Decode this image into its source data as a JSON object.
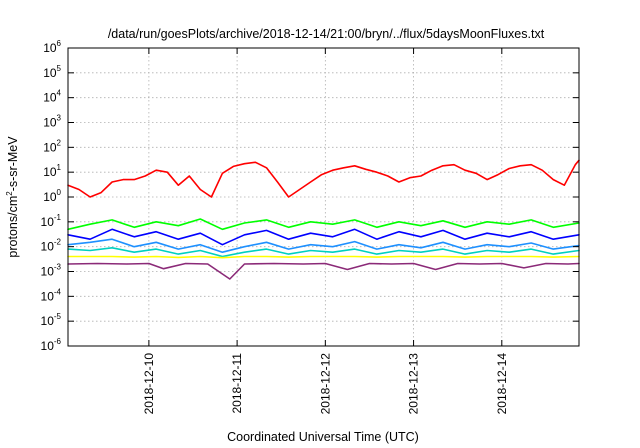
{
  "chart_data": {
    "type": "line",
    "title": "/data/run/goesPlots/archive/2018-12-14/21:00/bryn/../flux/5daysMoonFluxes.txt",
    "xlabel": "Coordinated Universal Time (UTC)",
    "ylabel": "protons/cm2-s-sr-MeV",
    "ylabel_parts": {
      "before": "protons/cm",
      "sup": "2",
      "after": "-s-sr-MeV"
    },
    "yscale": "log",
    "ylim": [
      1e-06,
      1000000.0
    ],
    "y_ticks": [
      {
        "base": "10",
        "exp": "-6",
        "value": 1e-06
      },
      {
        "base": "10",
        "exp": "-5",
        "value": 1e-05
      },
      {
        "base": "10",
        "exp": "-4",
        "value": 0.0001
      },
      {
        "base": "10",
        "exp": "-3",
        "value": 0.001
      },
      {
        "base": "10",
        "exp": "-2",
        "value": 0.01
      },
      {
        "base": "10",
        "exp": "-1",
        "value": 0.1
      },
      {
        "base": "10",
        "exp": "0",
        "value": 1
      },
      {
        "base": "10",
        "exp": "1",
        "value": 10
      },
      {
        "base": "10",
        "exp": "2",
        "value": 100
      },
      {
        "base": "10",
        "exp": "3",
        "value": 1000
      },
      {
        "base": "10",
        "exp": "4",
        "value": 10000
      },
      {
        "base": "10",
        "exp": "5",
        "value": 100000
      },
      {
        "base": "10",
        "exp": "6",
        "value": 1000000
      }
    ],
    "xlim": [
      "2018-12-09 02:00",
      "2018-12-14 21:00"
    ],
    "x_ticks": [
      "2018-12-10",
      "2018-12-11",
      "2018-12-12",
      "2018-12-13",
      "2018-12-14"
    ],
    "grid": true,
    "legend": "none",
    "series": [
      {
        "color": "#ff0000",
        "x": [
          "2018-12-09 02:00",
          "2018-12-09 05:00",
          "2018-12-09 08:00",
          "2018-12-09 11:00",
          "2018-12-09 14:00",
          "2018-12-09 17:00",
          "2018-12-09 20:00",
          "2018-12-09 23:00",
          "2018-12-10 02:00",
          "2018-12-10 05:00",
          "2018-12-10 08:00",
          "2018-12-10 11:00",
          "2018-12-10 14:00",
          "2018-12-10 17:00",
          "2018-12-10 20:00",
          "2018-12-10 23:00",
          "2018-12-11 02:00",
          "2018-12-11 05:00",
          "2018-12-11 08:00",
          "2018-12-11 11:00",
          "2018-12-11 14:00",
          "2018-12-11 17:00",
          "2018-12-11 20:00",
          "2018-12-11 23:00",
          "2018-12-12 02:00",
          "2018-12-12 05:00",
          "2018-12-12 08:00",
          "2018-12-12 11:00",
          "2018-12-12 14:00",
          "2018-12-12 17:00",
          "2018-12-12 20:00",
          "2018-12-12 23:00",
          "2018-12-13 02:00",
          "2018-12-13 05:00",
          "2018-12-13 08:00",
          "2018-12-13 11:00",
          "2018-12-13 14:00",
          "2018-12-13 17:00",
          "2018-12-13 20:00",
          "2018-12-13 23:00",
          "2018-12-14 02:00",
          "2018-12-14 05:00",
          "2018-12-14 08:00",
          "2018-12-14 11:00",
          "2018-12-14 14:00",
          "2018-12-14 17:00",
          "2018-12-14 20:00",
          "2018-12-14 21:00"
        ],
        "y": [
          3,
          2,
          1,
          1.5,
          4,
          5,
          5,
          7,
          12,
          10,
          3,
          7,
          2,
          1,
          9,
          17,
          22,
          25,
          15,
          4,
          1,
          2,
          4,
          8,
          12,
          15,
          18,
          13,
          10,
          7,
          4,
          6,
          7,
          12,
          18,
          20,
          12,
          9,
          5,
          8,
          14,
          18,
          20,
          12,
          5,
          3,
          20,
          30
        ]
      },
      {
        "color": "#00ff00",
        "x": [
          "2018-12-09 02:00",
          "2018-12-09 08:00",
          "2018-12-09 14:00",
          "2018-12-09 20:00",
          "2018-12-10 02:00",
          "2018-12-10 08:00",
          "2018-12-10 14:00",
          "2018-12-10 20:00",
          "2018-12-11 02:00",
          "2018-12-11 08:00",
          "2018-12-11 14:00",
          "2018-12-11 20:00",
          "2018-12-12 02:00",
          "2018-12-12 08:00",
          "2018-12-12 14:00",
          "2018-12-12 20:00",
          "2018-12-13 02:00",
          "2018-12-13 08:00",
          "2018-12-13 14:00",
          "2018-12-13 20:00",
          "2018-12-14 02:00",
          "2018-12-14 08:00",
          "2018-12-14 14:00",
          "2018-12-14 21:00"
        ],
        "y": [
          0.05,
          0.08,
          0.12,
          0.06,
          0.1,
          0.07,
          0.13,
          0.05,
          0.09,
          0.12,
          0.06,
          0.1,
          0.08,
          0.12,
          0.06,
          0.1,
          0.07,
          0.11,
          0.06,
          0.1,
          0.08,
          0.12,
          0.06,
          0.09
        ]
      },
      {
        "color": "#0000ff",
        "x": [
          "2018-12-09 02:00",
          "2018-12-09 08:00",
          "2018-12-09 14:00",
          "2018-12-09 20:00",
          "2018-12-10 02:00",
          "2018-12-10 08:00",
          "2018-12-10 14:00",
          "2018-12-10 20:00",
          "2018-12-11 02:00",
          "2018-12-11 08:00",
          "2018-12-11 14:00",
          "2018-12-11 20:00",
          "2018-12-12 02:00",
          "2018-12-12 08:00",
          "2018-12-12 14:00",
          "2018-12-12 20:00",
          "2018-12-13 02:00",
          "2018-12-13 08:00",
          "2018-12-13 14:00",
          "2018-12-13 20:00",
          "2018-12-14 02:00",
          "2018-12-14 08:00",
          "2018-12-14 14:00",
          "2018-12-14 21:00"
        ],
        "y": [
          0.03,
          0.02,
          0.05,
          0.025,
          0.04,
          0.02,
          0.035,
          0.012,
          0.03,
          0.045,
          0.02,
          0.035,
          0.025,
          0.05,
          0.02,
          0.04,
          0.025,
          0.045,
          0.02,
          0.035,
          0.025,
          0.04,
          0.02,
          0.03
        ]
      },
      {
        "color": "#1e90ff",
        "x": [
          "2018-12-09 02:00",
          "2018-12-09 08:00",
          "2018-12-09 14:00",
          "2018-12-09 20:00",
          "2018-12-10 02:00",
          "2018-12-10 08:00",
          "2018-12-10 14:00",
          "2018-12-10 20:00",
          "2018-12-11 02:00",
          "2018-12-11 08:00",
          "2018-12-11 14:00",
          "2018-12-11 20:00",
          "2018-12-12 02:00",
          "2018-12-12 08:00",
          "2018-12-12 14:00",
          "2018-12-12 20:00",
          "2018-12-13 02:00",
          "2018-12-13 08:00",
          "2018-12-13 14:00",
          "2018-12-13 20:00",
          "2018-12-14 02:00",
          "2018-12-14 08:00",
          "2018-12-14 14:00",
          "2018-12-14 21:00"
        ],
        "y": [
          0.012,
          0.015,
          0.02,
          0.01,
          0.015,
          0.008,
          0.012,
          0.006,
          0.01,
          0.015,
          0.008,
          0.012,
          0.01,
          0.016,
          0.008,
          0.012,
          0.009,
          0.015,
          0.008,
          0.012,
          0.01,
          0.014,
          0.008,
          0.011
        ]
      },
      {
        "color": "#00d0c0",
        "x": [
          "2018-12-09 02:00",
          "2018-12-09 08:00",
          "2018-12-09 14:00",
          "2018-12-09 20:00",
          "2018-12-10 02:00",
          "2018-12-10 08:00",
          "2018-12-10 14:00",
          "2018-12-10 20:00",
          "2018-12-11 02:00",
          "2018-12-11 08:00",
          "2018-12-11 14:00",
          "2018-12-11 20:00",
          "2018-12-12 02:00",
          "2018-12-12 08:00",
          "2018-12-12 14:00",
          "2018-12-12 20:00",
          "2018-12-13 02:00",
          "2018-12-13 08:00",
          "2018-12-13 14:00",
          "2018-12-13 20:00",
          "2018-12-14 02:00",
          "2018-12-14 08:00",
          "2018-12-14 14:00",
          "2018-12-14 21:00"
        ],
        "y": [
          0.008,
          0.007,
          0.009,
          0.006,
          0.008,
          0.005,
          0.007,
          0.004,
          0.006,
          0.008,
          0.005,
          0.007,
          0.006,
          0.008,
          0.005,
          0.007,
          0.006,
          0.008,
          0.005,
          0.007,
          0.006,
          0.008,
          0.005,
          0.007
        ]
      },
      {
        "color": "#ffff00",
        "x": [
          "2018-12-09 02:00",
          "2018-12-09 08:00",
          "2018-12-09 14:00",
          "2018-12-09 20:00",
          "2018-12-10 02:00",
          "2018-12-10 08:00",
          "2018-12-10 14:00",
          "2018-12-10 20:00",
          "2018-12-11 02:00",
          "2018-12-11 08:00",
          "2018-12-11 14:00",
          "2018-12-11 20:00",
          "2018-12-12 02:00",
          "2018-12-12 08:00",
          "2018-12-12 14:00",
          "2018-12-12 20:00",
          "2018-12-13 02:00",
          "2018-12-13 08:00",
          "2018-12-13 14:00",
          "2018-12-13 20:00",
          "2018-12-14 02:00",
          "2018-12-14 08:00",
          "2018-12-14 14:00",
          "2018-12-14 21:00"
        ],
        "y": [
          0.004,
          0.004,
          0.004,
          0.0038,
          0.004,
          0.0037,
          0.004,
          0.0036,
          0.004,
          0.004,
          0.0038,
          0.004,
          0.004,
          0.004,
          0.0038,
          0.004,
          0.004,
          0.004,
          0.0038,
          0.004,
          0.004,
          0.004,
          0.0038,
          0.004
        ]
      },
      {
        "color": "#8b2a78",
        "x": [
          "2018-12-09 02:00",
          "2018-12-09 10:00",
          "2018-12-09 18:00",
          "2018-12-10 00:00",
          "2018-12-10 04:00",
          "2018-12-10 10:00",
          "2018-12-10 16:00",
          "2018-12-10 22:00",
          "2018-12-11 02:00",
          "2018-12-11 10:00",
          "2018-12-11 18:00",
          "2018-12-12 00:00",
          "2018-12-12 06:00",
          "2018-12-12 12:00",
          "2018-12-12 18:00",
          "2018-12-13 00:00",
          "2018-12-13 06:00",
          "2018-12-13 12:00",
          "2018-12-13 18:00",
          "2018-12-14 00:00",
          "2018-12-14 06:00",
          "2018-12-14 12:00",
          "2018-12-14 18:00",
          "2018-12-14 21:00"
        ],
        "y": [
          0.002,
          0.0021,
          0.002,
          0.0021,
          0.0013,
          0.0021,
          0.002,
          0.0005,
          0.002,
          0.0021,
          0.002,
          0.0021,
          0.0012,
          0.0021,
          0.002,
          0.0021,
          0.0012,
          0.0021,
          0.002,
          0.0021,
          0.0014,
          0.0021,
          0.002,
          0.0021
        ]
      }
    ]
  }
}
